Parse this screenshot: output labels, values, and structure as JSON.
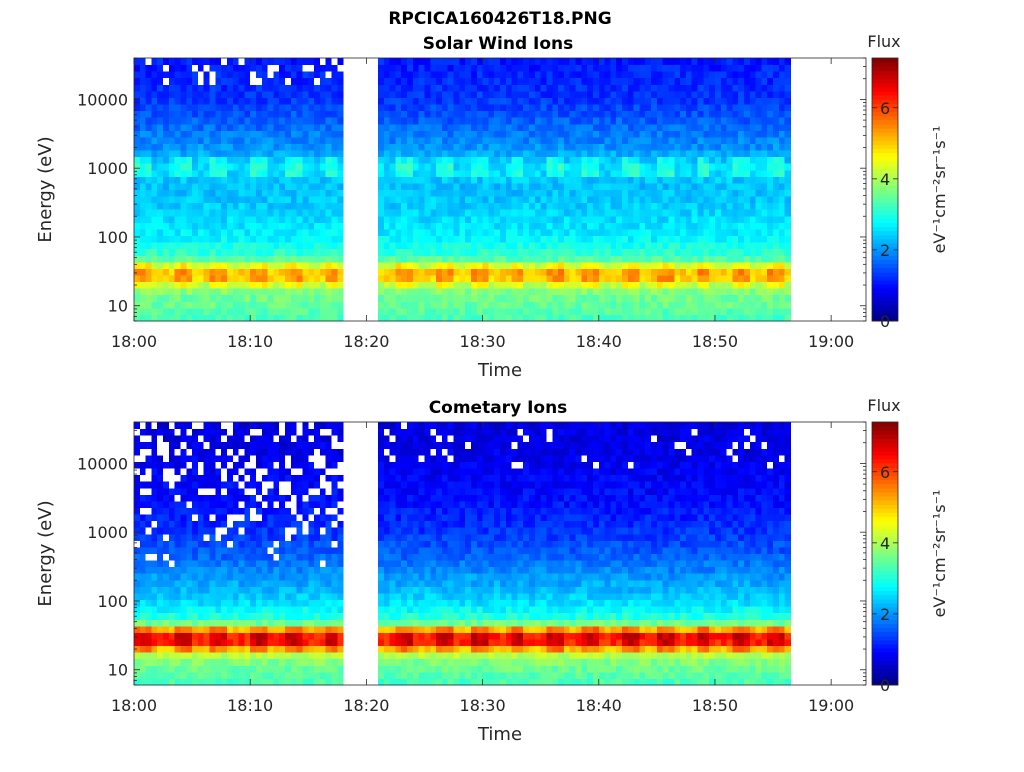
{
  "figure": {
    "title": "RPCICA160426T18.PNG"
  },
  "colors": {
    "colormap": "jet",
    "gap_fill": "#ffffff",
    "saturated_low": "#ffffff"
  },
  "chart_data": [
    {
      "type": "heatmap",
      "title": "Solar Wind Ions",
      "xlabel": "Time",
      "ylabel": "Energy (eV)",
      "xlim": [
        "18:00",
        "19:03"
      ],
      "ylim": [
        6,
        40000
      ],
      "yscale": "log",
      "x_ticks": [
        "18:00",
        "18:10",
        "18:20",
        "18:30",
        "18:40",
        "18:50",
        "19:00"
      ],
      "y_ticks": [
        "10",
        "100",
        "1000",
        "10000"
      ],
      "data_coverage": [
        [
          "18:00",
          "18:18"
        ],
        [
          "18:21",
          "18:56.5"
        ]
      ],
      "pulse_period_min": 3.2,
      "energy_profile": [
        {
          "energy": 7,
          "flux": 3.3
        },
        {
          "energy": 10,
          "flux": 3.5
        },
        {
          "energy": 15,
          "flux": 3.6
        },
        {
          "energy": 20,
          "flux": 4.1
        },
        {
          "energy": 25,
          "flux": 4.9
        },
        {
          "energy": 30,
          "flux": 5.1
        },
        {
          "energy": 36,
          "flux": 4.6
        },
        {
          "energy": 45,
          "flux": 3.5
        },
        {
          "energy": 60,
          "flux": 3.1
        },
        {
          "energy": 100,
          "flux": 2.7
        },
        {
          "energy": 300,
          "flux": 2.4
        },
        {
          "energy": 600,
          "flux": 2.3
        },
        {
          "energy": 1000,
          "flux": 2.6
        },
        {
          "energy": 2000,
          "flux": 2.0
        },
        {
          "energy": 5000,
          "flux": 1.6
        },
        {
          "energy": 10000,
          "flux": 1.3
        },
        {
          "energy": 40000,
          "flux": 1.1
        }
      ],
      "colorbar": {
        "title": "Flux",
        "label": "eV⁻¹cm⁻²sr⁻¹s⁻¹",
        "range": [
          0,
          7.4
        ],
        "ticks": [
          "0",
          "2",
          "4",
          "6"
        ]
      }
    },
    {
      "type": "heatmap",
      "title": "Cometary Ions",
      "xlabel": "Time",
      "ylabel": "Energy (eV)",
      "xlim": [
        "18:00",
        "19:03"
      ],
      "ylim": [
        6,
        40000
      ],
      "yscale": "log",
      "x_ticks": [
        "18:00",
        "18:10",
        "18:20",
        "18:30",
        "18:40",
        "18:50",
        "19:00"
      ],
      "y_ticks": [
        "10",
        "100",
        "1000",
        "10000"
      ],
      "data_coverage": [
        [
          "18:00",
          "18:18"
        ],
        [
          "18:21",
          "18:56.5"
        ]
      ],
      "pulse_period_min": 3.2,
      "energy_profile": [
        {
          "energy": 7,
          "flux": 3.3
        },
        {
          "energy": 10,
          "flux": 3.5
        },
        {
          "energy": 15,
          "flux": 3.8
        },
        {
          "energy": 20,
          "flux": 5.0
        },
        {
          "energy": 25,
          "flux": 6.2
        },
        {
          "energy": 30,
          "flux": 6.4
        },
        {
          "energy": 36,
          "flux": 5.8
        },
        {
          "energy": 45,
          "flux": 3.8
        },
        {
          "energy": 60,
          "flux": 3.0
        },
        {
          "energy": 100,
          "flux": 2.5
        },
        {
          "energy": 200,
          "flux": 2.1
        },
        {
          "energy": 500,
          "flux": 1.6
        },
        {
          "energy": 1000,
          "flux": 1.3
        },
        {
          "energy": 3000,
          "flux": 1.0
        },
        {
          "energy": 10000,
          "flux": 0.8
        },
        {
          "energy": 40000,
          "flux": 0.7
        }
      ],
      "colorbar": {
        "title": "Flux",
        "label": "eV⁻¹cm⁻²sr⁻¹s⁻¹",
        "range": [
          0,
          7.4
        ],
        "ticks": [
          "0",
          "2",
          "4",
          "6"
        ]
      }
    }
  ]
}
